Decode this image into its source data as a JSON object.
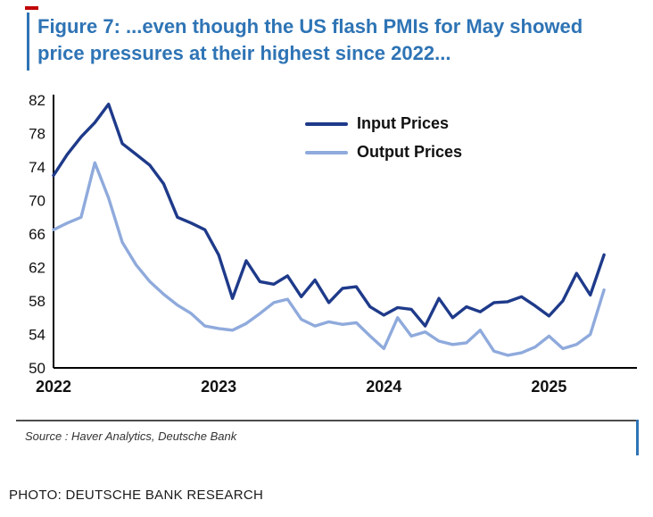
{
  "header": {
    "title": "Figure 7: ...even though the US flash PMIs for May showed price pressures at their highest since 2022...",
    "accent_color": "#2e74b5",
    "dash_color": "#c00000"
  },
  "chart_data": {
    "type": "line",
    "title": "",
    "xlabel": "",
    "ylabel": "",
    "grid": false,
    "legend_position": "top-center",
    "ylim": [
      50,
      82
    ],
    "yticks": [
      50,
      54,
      58,
      62,
      66,
      70,
      74,
      78,
      82
    ],
    "x_labels": [
      "2022",
      "2023",
      "2024",
      "2025"
    ],
    "x_label_positions": [
      0,
      12,
      24,
      36
    ],
    "x_unit": "month",
    "series": [
      {
        "name": "Input Prices",
        "color": "#1e3a8a",
        "values": [
          73.0,
          75.5,
          77.6,
          79.3,
          81.5,
          76.8,
          75.5,
          74.2,
          72.0,
          68.0,
          67.3,
          66.5,
          63.5,
          58.3,
          62.8,
          60.3,
          60.0,
          61.0,
          58.5,
          60.5,
          57.8,
          59.5,
          59.7,
          57.3,
          56.3,
          57.2,
          57.0,
          55.0,
          58.3,
          56.0,
          57.3,
          56.7,
          57.8,
          57.9,
          58.5,
          57.4,
          56.2,
          58.0,
          61.3,
          58.7,
          63.5
        ]
      },
      {
        "name": "Output Prices",
        "color": "#8faadc",
        "values": [
          66.5,
          67.3,
          68.0,
          74.5,
          70.3,
          65.0,
          62.3,
          60.3,
          58.8,
          57.5,
          56.5,
          55.0,
          54.7,
          54.5,
          55.3,
          56.5,
          57.8,
          58.2,
          55.8,
          55.0,
          55.5,
          55.2,
          55.4,
          53.8,
          52.3,
          56.0,
          53.8,
          54.3,
          53.2,
          52.8,
          53.0,
          54.5,
          52.0,
          51.5,
          51.8,
          52.5,
          53.8,
          52.3,
          52.8,
          54.0,
          59.3
        ]
      }
    ]
  },
  "footer": {
    "source": "Source : Haver Analytics, Deutsche Bank",
    "photo_credit": "PHOTO: DEUTSCHE BANK RESEARCH"
  }
}
